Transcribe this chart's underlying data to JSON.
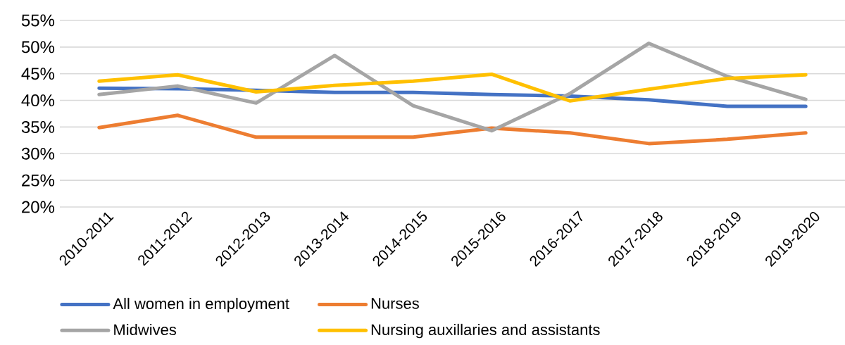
{
  "chart_data": {
    "type": "line",
    "categories": [
      "2010-2011",
      "2011-2012",
      "2012-2013",
      "2013-2014",
      "2014-2015",
      "2015-2016",
      "2016-2017",
      "2017-2018",
      "2018-2019",
      "2019-2020"
    ],
    "ylim": [
      20,
      55
    ],
    "yticks": [
      {
        "value": 20,
        "label": "20%"
      },
      {
        "value": 25,
        "label": "25%"
      },
      {
        "value": 30,
        "label": "30%"
      },
      {
        "value": 35,
        "label": "35%"
      },
      {
        "value": 40,
        "label": "40%"
      },
      {
        "value": 45,
        "label": "45%"
      },
      {
        "value": 50,
        "label": "50%"
      },
      {
        "value": 55,
        "label": "55%"
      }
    ],
    "grid": "y",
    "legend": "bottom",
    "line_style": "solid",
    "series": [
      {
        "name": "All women in employment",
        "color": "#4472c4",
        "values": [
          42.3,
          42.2,
          41.9,
          41.5,
          41.5,
          41.1,
          40.8,
          40.1,
          38.9,
          38.9
        ]
      },
      {
        "name": "Nurses",
        "color": "#ed7d31",
        "values": [
          34.9,
          37.2,
          33.1,
          33.1,
          33.1,
          34.8,
          33.9,
          31.9,
          32.7,
          33.9
        ]
      },
      {
        "name": "Midwives",
        "color": "#a5a5a5",
        "values": [
          41.1,
          42.7,
          39.5,
          48.4,
          39.0,
          34.3,
          41.3,
          50.7,
          44.5,
          40.2
        ]
      },
      {
        "name": "Nursing auxillaries and assistants",
        "color": "#ffc000",
        "values": [
          43.6,
          44.8,
          41.6,
          42.8,
          43.6,
          44.9,
          39.9,
          42.1,
          44.1,
          44.8
        ]
      }
    ]
  }
}
